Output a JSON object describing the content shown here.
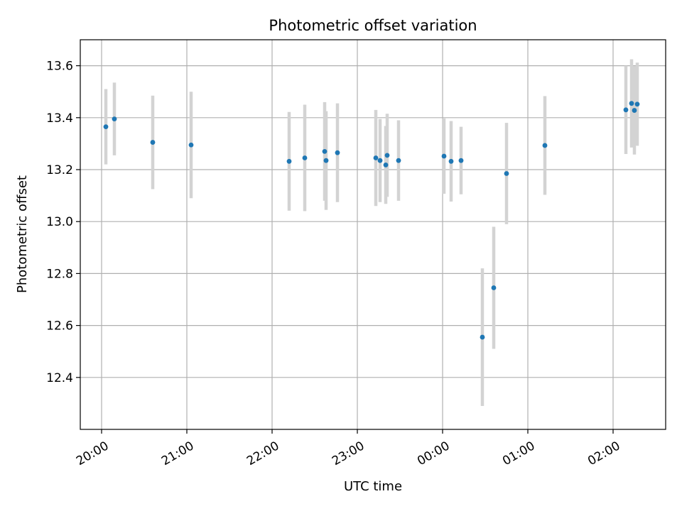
{
  "chart_data": {
    "type": "scatter",
    "title": "Photometric offset variation",
    "xlabel": "UTC time",
    "ylabel": "Photometric offset",
    "ylim": [
      12.2,
      13.7
    ],
    "xlim": [
      "19:45",
      "02:37"
    ],
    "x_ticks": [
      "20:00",
      "21:00",
      "22:00",
      "23:00",
      "00:00",
      "01:00",
      "02:00"
    ],
    "y_ticks": [
      "12.4",
      "12.6",
      "12.8",
      "13.0",
      "13.2",
      "13.4",
      "13.6"
    ],
    "grid": true,
    "marker_color": "#1f77b4",
    "errorbar_color": "#d3d3d3",
    "points": [
      {
        "time": "20:03",
        "y": 13.365,
        "yerr": 0.145
      },
      {
        "time": "20:09",
        "y": 13.395,
        "yerr": 0.14
      },
      {
        "time": "20:36",
        "y": 13.305,
        "yerr": 0.18
      },
      {
        "time": "21:03",
        "y": 13.295,
        "yerr": 0.205
      },
      {
        "time": "22:12",
        "y": 13.232,
        "yerr": 0.19
      },
      {
        "time": "22:23",
        "y": 13.245,
        "yerr": 0.205
      },
      {
        "time": "22:37",
        "y": 13.27,
        "yerr": 0.19
      },
      {
        "time": "22:38",
        "y": 13.235,
        "yerr": 0.19
      },
      {
        "time": "22:46",
        "y": 13.265,
        "yerr": 0.19
      },
      {
        "time": "23:13",
        "y": 13.245,
        "yerr": 0.185
      },
      {
        "time": "23:16",
        "y": 13.235,
        "yerr": 0.16
      },
      {
        "time": "23:20",
        "y": 13.218,
        "yerr": 0.15
      },
      {
        "time": "23:21",
        "y": 13.255,
        "yerr": 0.16
      },
      {
        "time": "23:29",
        "y": 13.235,
        "yerr": 0.155
      },
      {
        "time": "00:01",
        "y": 13.252,
        "yerr": 0.145
      },
      {
        "time": "00:06",
        "y": 13.232,
        "yerr": 0.155
      },
      {
        "time": "00:13",
        "y": 13.235,
        "yerr": 0.13
      },
      {
        "time": "00:28",
        "y": 12.555,
        "yerr": 0.265
      },
      {
        "time": "00:36",
        "y": 12.745,
        "yerr": 0.235
      },
      {
        "time": "00:45",
        "y": 13.185,
        "yerr": 0.195
      },
      {
        "time": "01:12",
        "y": 13.293,
        "yerr": 0.19
      },
      {
        "time": "02:09",
        "y": 13.43,
        "yerr": 0.17
      },
      {
        "time": "02:13",
        "y": 13.455,
        "yerr": 0.17
      },
      {
        "time": "02:15",
        "y": 13.428,
        "yerr": 0.17
      },
      {
        "time": "02:17",
        "y": 13.452,
        "yerr": 0.16
      }
    ]
  }
}
